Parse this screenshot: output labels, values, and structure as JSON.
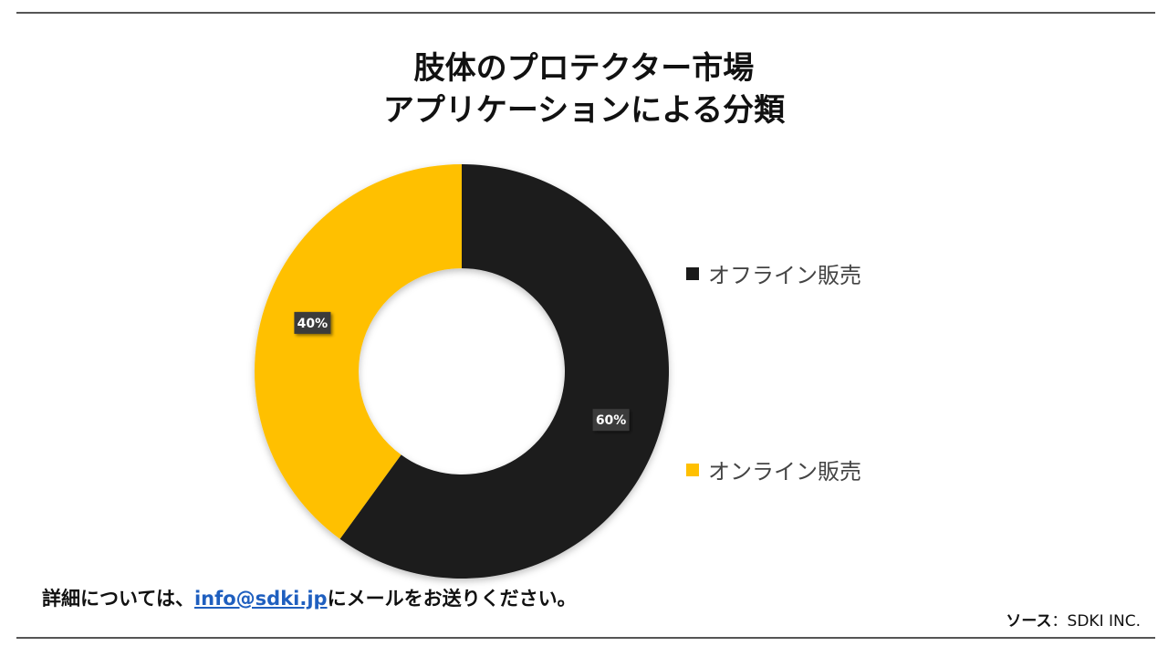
{
  "title_line1": "肢体のプロテクター市場",
  "title_line2": "アプリケーションによる分類",
  "chart_data": {
    "type": "donut",
    "series": [
      {
        "name": "オフライン販売",
        "value": 60,
        "label": "60%",
        "color": "#1a1a1a"
      },
      {
        "name": "オンライン販売",
        "value": 40,
        "label": "40%",
        "color": "#ffc000"
      }
    ],
    "legend_position": "right"
  },
  "footer": {
    "prefix": "詳細については、",
    "email": "info@sdki.jp",
    "suffix": "にメールをお送りください。"
  },
  "source": {
    "label": "ソース",
    "value": "：SDKI INC."
  }
}
